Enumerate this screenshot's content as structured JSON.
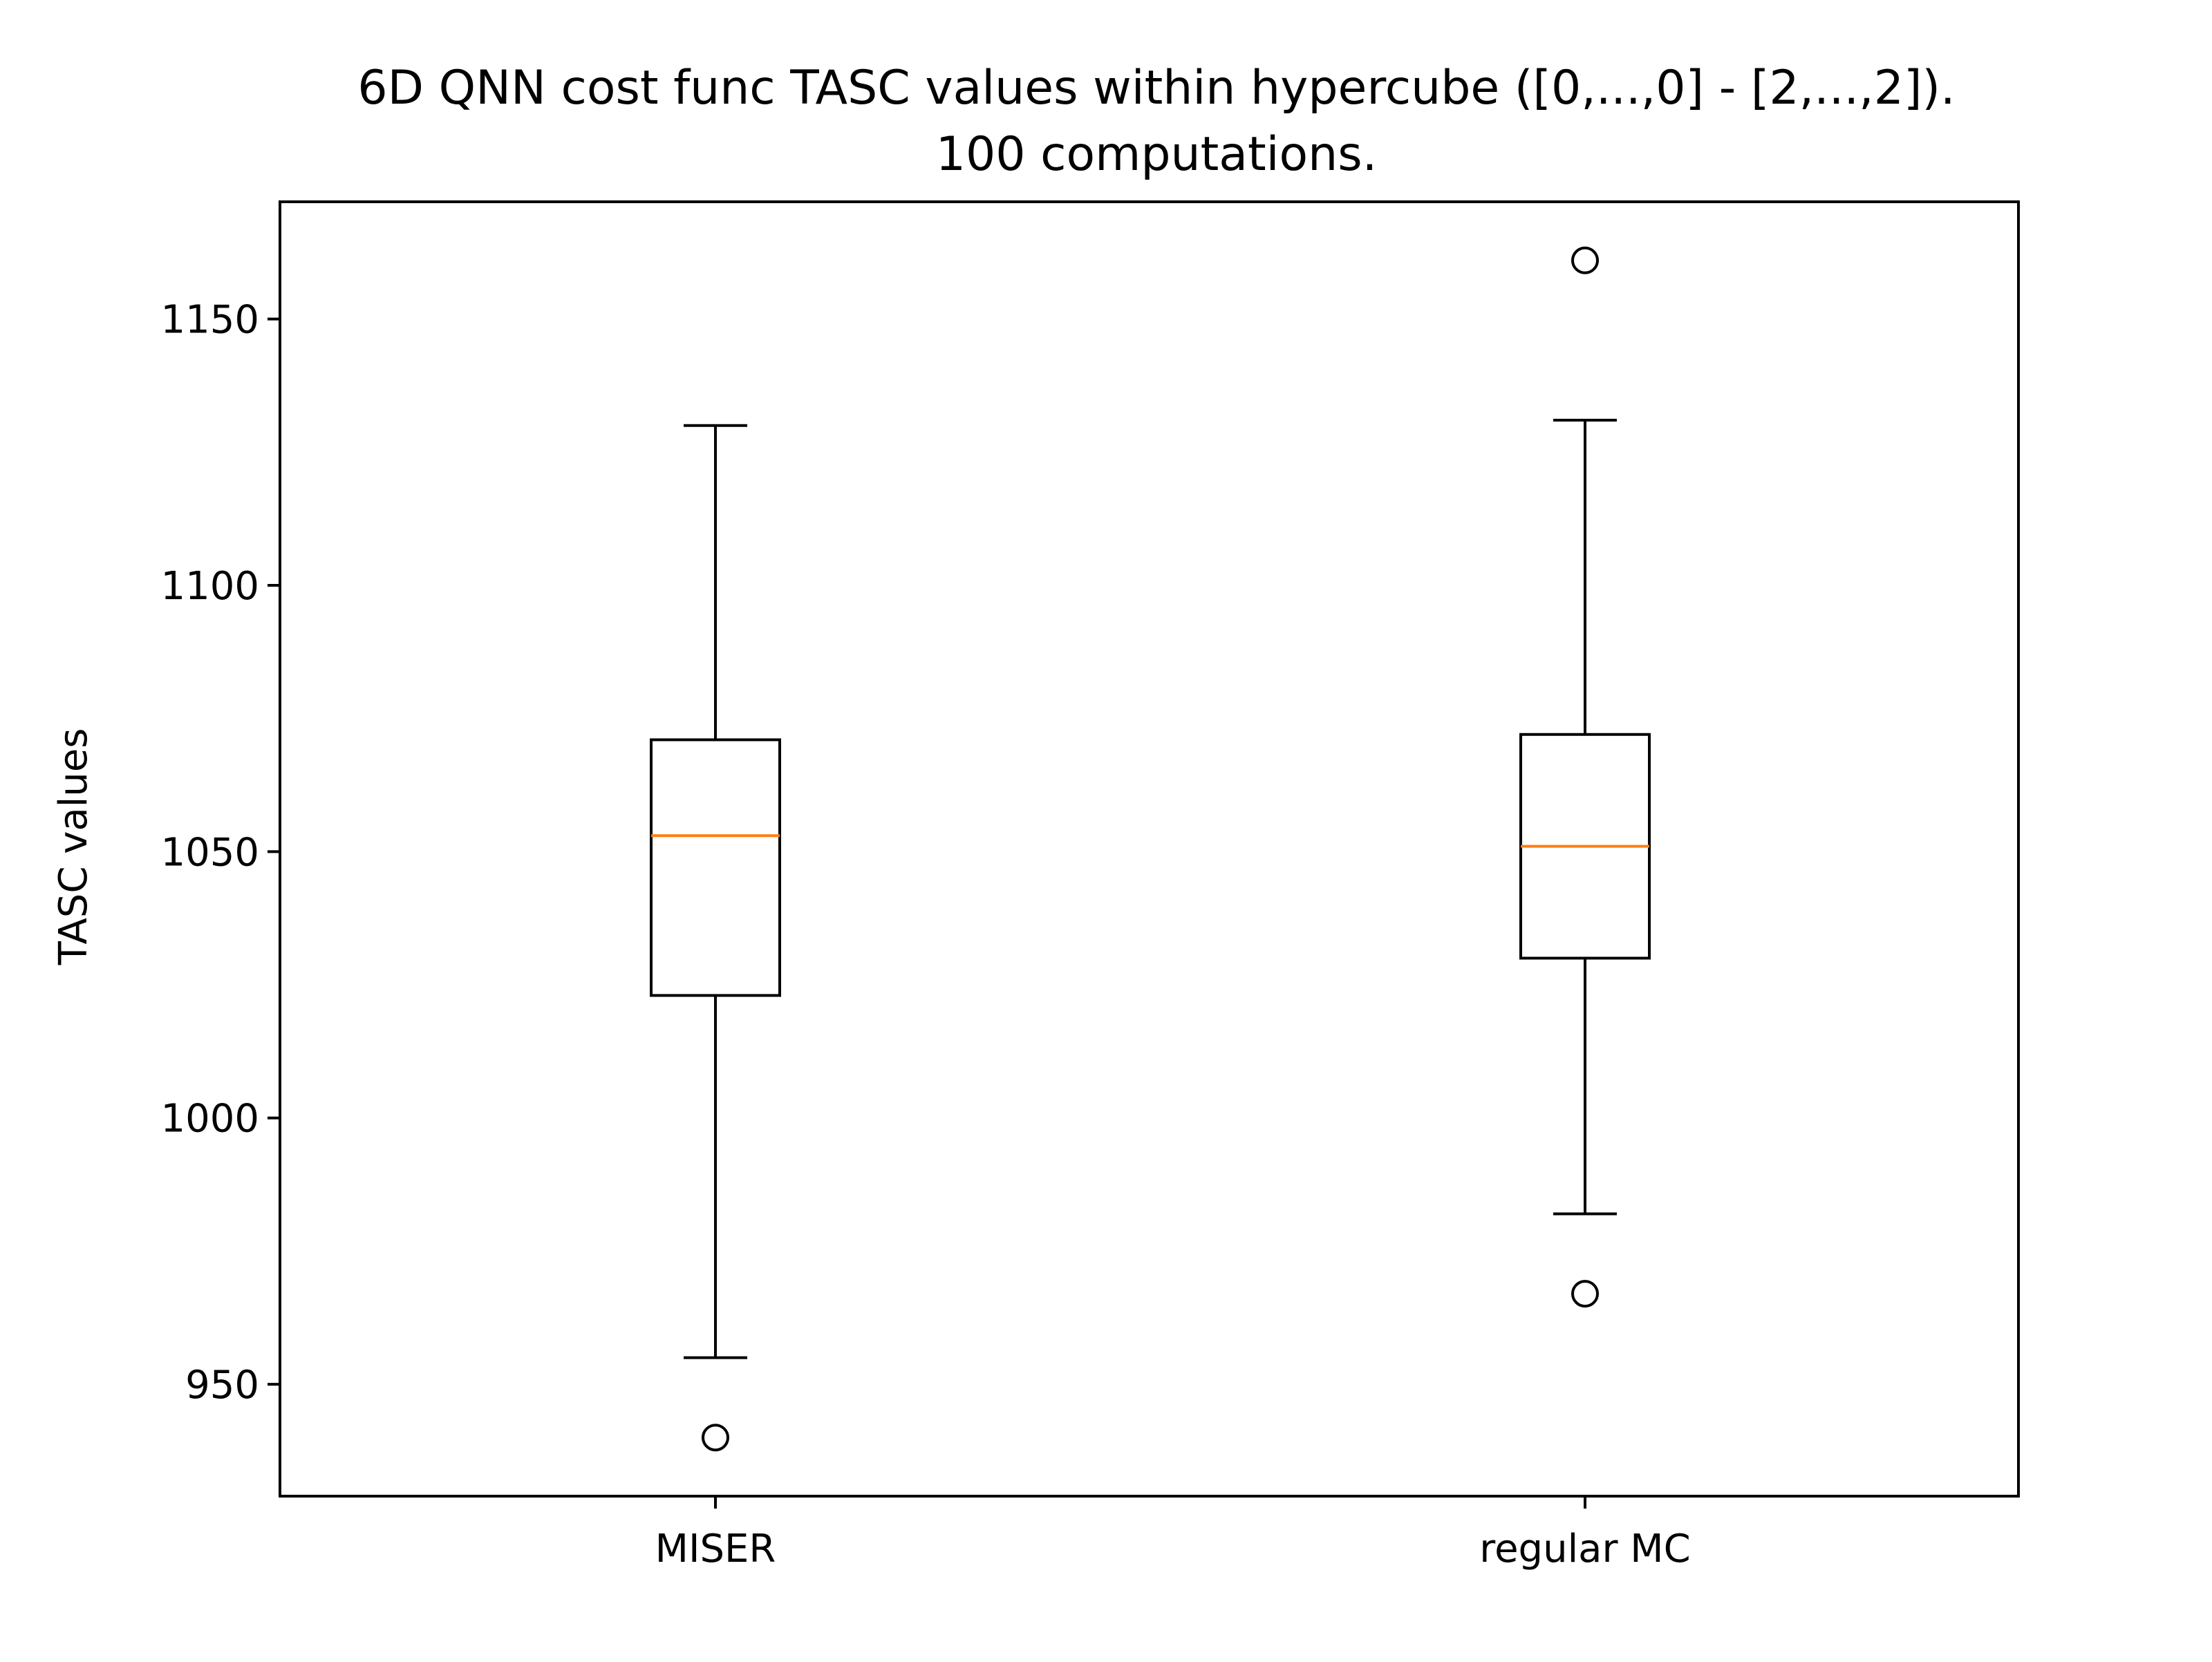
{
  "chart_data": {
    "type": "boxplot",
    "title": "6D QNN cost func TASC values within hypercube ([0,...,0] - [2,...,2]).",
    "subtitle": "100 computations.",
    "xlabel": "",
    "ylabel": "TASC values",
    "ylim": [
      929,
      1172
    ],
    "yticks": [
      950,
      1000,
      1050,
      1100,
      1150
    ],
    "ytick_labels": [
      "950",
      "1000",
      "1050",
      "1100",
      "1150"
    ],
    "grid": false,
    "legend": "none",
    "categories": [
      "MISER",
      "regular MC"
    ],
    "boxes": [
      {
        "label": "MISER",
        "whisker_low": 955,
        "q1": 1023,
        "median": 1053,
        "q3": 1071,
        "whisker_high": 1130,
        "outliers": [
          940
        ]
      },
      {
        "label": "regular MC",
        "whisker_low": 982,
        "q1": 1030,
        "median": 1051,
        "q3": 1072,
        "whisker_high": 1131,
        "outliers": [
          967,
          1161
        ]
      }
    ],
    "colors": {
      "box": "#000000",
      "median": "#ff7f0e",
      "background": "#ffffff"
    }
  }
}
